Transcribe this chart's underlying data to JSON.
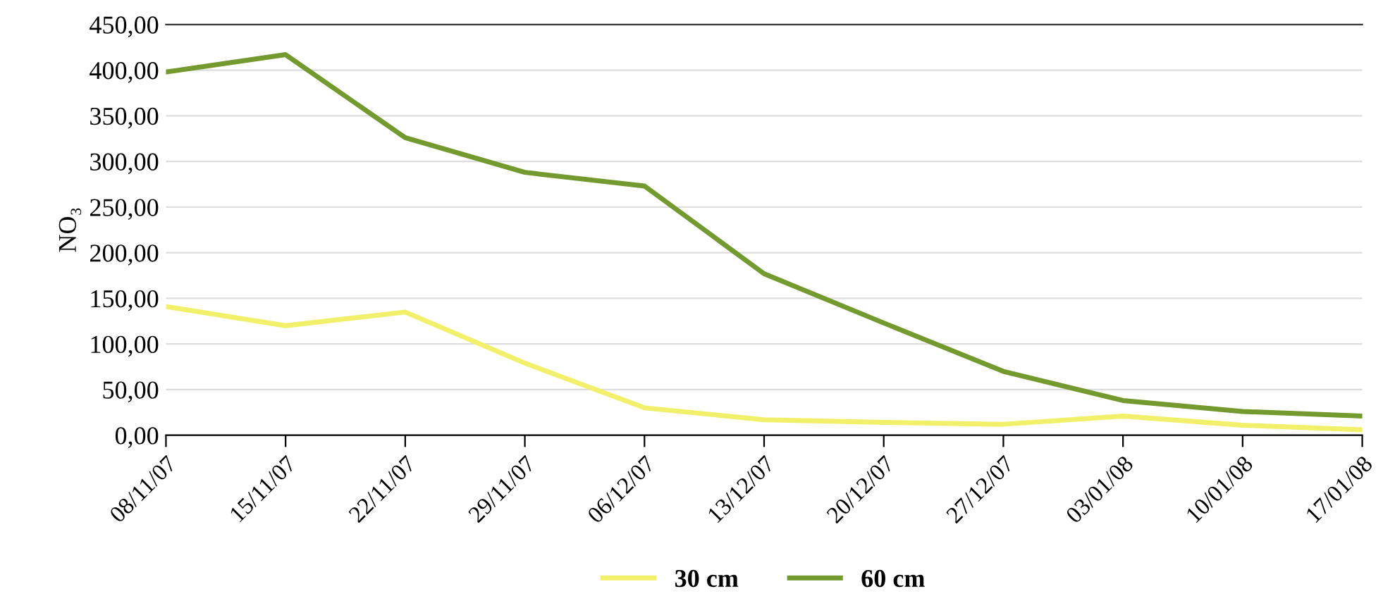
{
  "chart_data": {
    "type": "line",
    "ylabel": "NO₃",
    "categories": [
      "08/11/07",
      "15/11/07",
      "22/11/07",
      "29/11/07",
      "06/12/07",
      "13/12/07",
      "20/12/07",
      "27/12/07",
      "03/01/08",
      "10/01/08",
      "17/01/08"
    ],
    "series": [
      {
        "name": "30 cm",
        "color": "#f2f06a",
        "values": [
          141,
          120,
          135,
          79,
          30,
          17,
          14,
          12,
          21,
          11,
          6
        ]
      },
      {
        "name": "60 cm",
        "color": "#739a2f",
        "values": [
          398,
          417,
          326,
          288,
          273,
          177,
          123,
          70,
          38,
          26,
          21
        ]
      }
    ],
    "ylim": [
      0,
      450
    ],
    "yticks": [
      {
        "value": 0,
        "label": "0,00"
      },
      {
        "value": 50,
        "label": "50,00"
      },
      {
        "value": 100,
        "label": "100,00"
      },
      {
        "value": 150,
        "label": "150,00"
      },
      {
        "value": 200,
        "label": "200,00"
      },
      {
        "value": 250,
        "label": "250,00"
      },
      {
        "value": 300,
        "label": "300,00"
      },
      {
        "value": 350,
        "label": "350,00"
      },
      {
        "value": 400,
        "label": "400,00"
      },
      {
        "value": 450,
        "label": "450,00"
      }
    ],
    "grid": "y",
    "legend": "bottom",
    "marker": "none",
    "line_style": "solid"
  }
}
